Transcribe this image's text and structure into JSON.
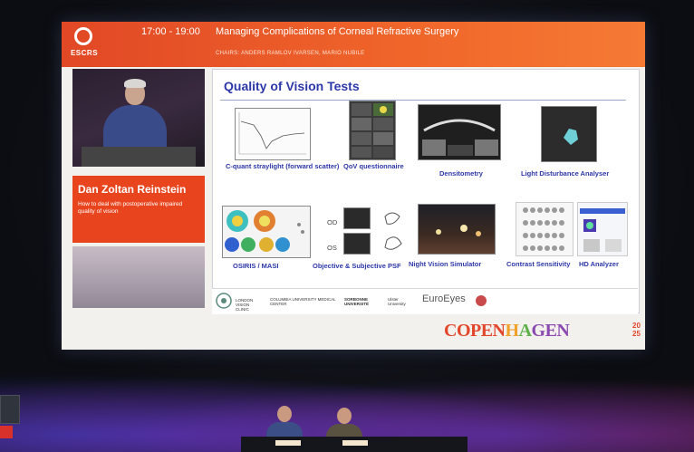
{
  "header": {
    "logo_text": "ESCRS",
    "time": "17:00 - 19:00",
    "session_title": "Managing Complications of Corneal Refractive Surgery",
    "chairs": "CHAIRS: ANDERS RAMLOV IVARSEN, MARIO NUBILE"
  },
  "speaker": {
    "name": "Dan Zoltan Reinstein",
    "talk_title": "How to deal with postoperative impaired quality of vision"
  },
  "slide": {
    "title": "Quality of Vision Tests",
    "tiles": [
      {
        "label": "C-quant straylight (forward scatter)"
      },
      {
        "label": "QoV questionnaire"
      },
      {
        "label": "Densitometry"
      },
      {
        "label": "Light Disturbance Analyser"
      },
      {
        "label": "OSIRIS / MASI"
      },
      {
        "label": "Objective & Subjective PSF"
      },
      {
        "label": "Night Vision Simulator"
      },
      {
        "label": "Contrast Sensitivity"
      },
      {
        "label": "HD Analyzer"
      }
    ],
    "psf_od": "OD",
    "psf_os": "OS",
    "logos": {
      "london_vision": "LONDON VISION CLINIC",
      "columbia": "COLUMBIA UNIVERSITY MEDICAL CENTER",
      "ulster": "Ulster University",
      "sorbonne": "SORBONNE UNIVERSITÉ",
      "euroeyes": "EuroEyes"
    }
  },
  "branding": {
    "city_parts": [
      "COPEN",
      "H",
      "A",
      "GEN"
    ],
    "year": "20\n25"
  },
  "colors": {
    "accent": "#e8451e",
    "slide_title": "#2d38a8"
  }
}
